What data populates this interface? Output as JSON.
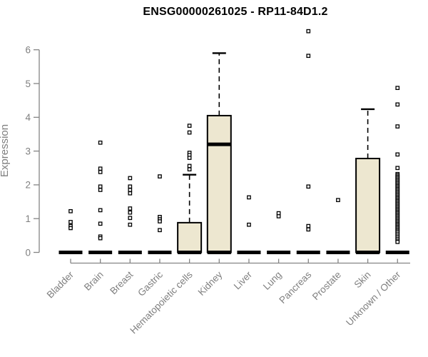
{
  "title": "ENSG00000261025 - RP11-84D1.2",
  "colors": {
    "box_fill": "#ede7d0",
    "box_border": "#000000",
    "axis_line": "#848484",
    "tick_text": "#7f7f7f",
    "title_text": "#000000",
    "outlier_fill": "#ffffff"
  },
  "chart_data": {
    "type": "boxplot",
    "title": "ENSG00000261025 - RP11-84D1.2",
    "xlabel": "",
    "ylabel": "Expression",
    "ylim": [
      0,
      6.6
    ],
    "yticks": [
      0,
      1,
      2,
      3,
      4,
      5,
      6
    ],
    "grid": false,
    "legend": "none",
    "categories": [
      "Bladder",
      "Brain",
      "Breast",
      "Gastric",
      "Hematopoietic cells",
      "Kidney",
      "Liver",
      "Lung",
      "Pancreas",
      "Prostate",
      "Skin",
      "Unknown / Other"
    ],
    "series": [
      {
        "label": "Bladder",
        "q1": 0,
        "median": 0,
        "q3": 0,
        "whiskers": [
          0,
          0
        ],
        "outliers": [
          1.22,
          0.9,
          0.78,
          0.72
        ]
      },
      {
        "label": "Brain",
        "q1": 0,
        "median": 0,
        "q3": 0,
        "whiskers": [
          0,
          0
        ],
        "outliers": [
          3.25,
          2.48,
          2.38,
          1.95,
          1.85,
          1.25,
          0.85,
          0.47,
          0.42
        ]
      },
      {
        "label": "Breast",
        "q1": 0,
        "median": 0,
        "q3": 0,
        "whiskers": [
          0,
          0
        ],
        "outliers": [
          2.2,
          1.95,
          1.85,
          1.75,
          1.3,
          1.18,
          1.02,
          0.82
        ]
      },
      {
        "label": "Gastric",
        "q1": 0,
        "median": 0,
        "q3": 0,
        "whiskers": [
          0,
          0
        ],
        "outliers": [
          2.25,
          1.05,
          0.98,
          0.92,
          0.66
        ]
      },
      {
        "label": "Hematopoietic cells",
        "q1": 0,
        "median": 0,
        "q3": 0.88,
        "whiskers": [
          0,
          2.3
        ],
        "outliers": [
          3.75,
          3.55,
          2.95,
          2.88,
          2.8,
          2.56,
          2.46
        ]
      },
      {
        "label": "Kidney",
        "q1": 0,
        "median": 3.2,
        "q3": 4.05,
        "whiskers": [
          0,
          5.9
        ],
        "outliers": []
      },
      {
        "label": "Liver",
        "q1": 0,
        "median": 0,
        "q3": 0,
        "whiskers": [
          0,
          0
        ],
        "outliers": [
          1.63,
          0.82
        ]
      },
      {
        "label": "Lung",
        "q1": 0,
        "median": 0,
        "q3": 0,
        "whiskers": [
          0,
          0
        ],
        "outliers": [
          1.16,
          1.07
        ]
      },
      {
        "label": "Pancreas",
        "q1": 0,
        "median": 0,
        "q3": 0,
        "whiskers": [
          0,
          0
        ],
        "outliers": [
          6.55,
          5.82,
          1.95,
          0.78,
          0.68
        ]
      },
      {
        "label": "Prostate",
        "q1": 0,
        "median": 0,
        "q3": 0,
        "whiskers": [
          0,
          0
        ],
        "outliers": [
          1.55
        ]
      },
      {
        "label": "Skin",
        "q1": 0,
        "median": 0,
        "q3": 2.78,
        "whiskers": [
          0,
          4.24
        ],
        "outliers": []
      },
      {
        "label": "Unknown / Other",
        "q1": 0,
        "median": 0,
        "q3": 0,
        "whiskers": [
          0,
          0
        ],
        "outliers": [
          4.87,
          4.38,
          3.73,
          2.9,
          2.5,
          2.32,
          2.28,
          2.24,
          2.2,
          2.16,
          2.12,
          2.08,
          2.04,
          2.0,
          1.96,
          1.92,
          1.88,
          1.84,
          1.8,
          1.76,
          1.72,
          1.68,
          1.64,
          1.6,
          1.56,
          1.52,
          1.48,
          1.44,
          1.4,
          1.36,
          1.32,
          1.28,
          1.24,
          1.2,
          1.16,
          1.12,
          1.08,
          1.04,
          1.0,
          0.96,
          0.92,
          0.88,
          0.84,
          0.8,
          0.76,
          0.72,
          0.68,
          0.64,
          0.6,
          0.55,
          0.5,
          0.45,
          0.4,
          0.35,
          0.31
        ]
      }
    ]
  }
}
